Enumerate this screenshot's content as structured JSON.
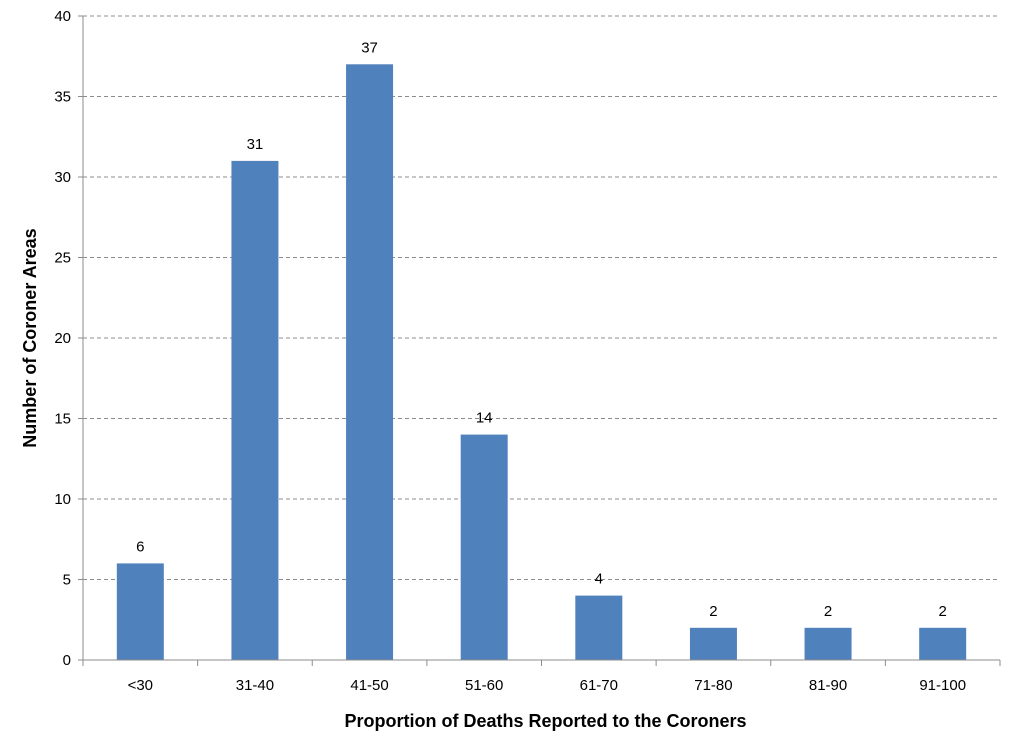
{
  "chart_data": {
    "type": "bar",
    "title": "",
    "xlabel": "Proportion of Deaths Reported to the Coroners",
    "ylabel": "Number of Coroner Areas",
    "categories": [
      "<30",
      "31-40",
      "41-50",
      "51-60",
      "61-70",
      "71-80",
      "81-90",
      "91-100"
    ],
    "values": [
      6,
      31,
      37,
      14,
      4,
      2,
      2,
      2
    ],
    "data_labels": [
      "6",
      "31",
      "37",
      "14",
      "4",
      "2",
      "2",
      "2"
    ],
    "yticks": [
      0,
      5,
      10,
      15,
      20,
      25,
      30,
      35,
      40
    ],
    "ylim": [
      0,
      40
    ],
    "grid": true,
    "legend": "none",
    "bar_color": "#4f81bd"
  }
}
